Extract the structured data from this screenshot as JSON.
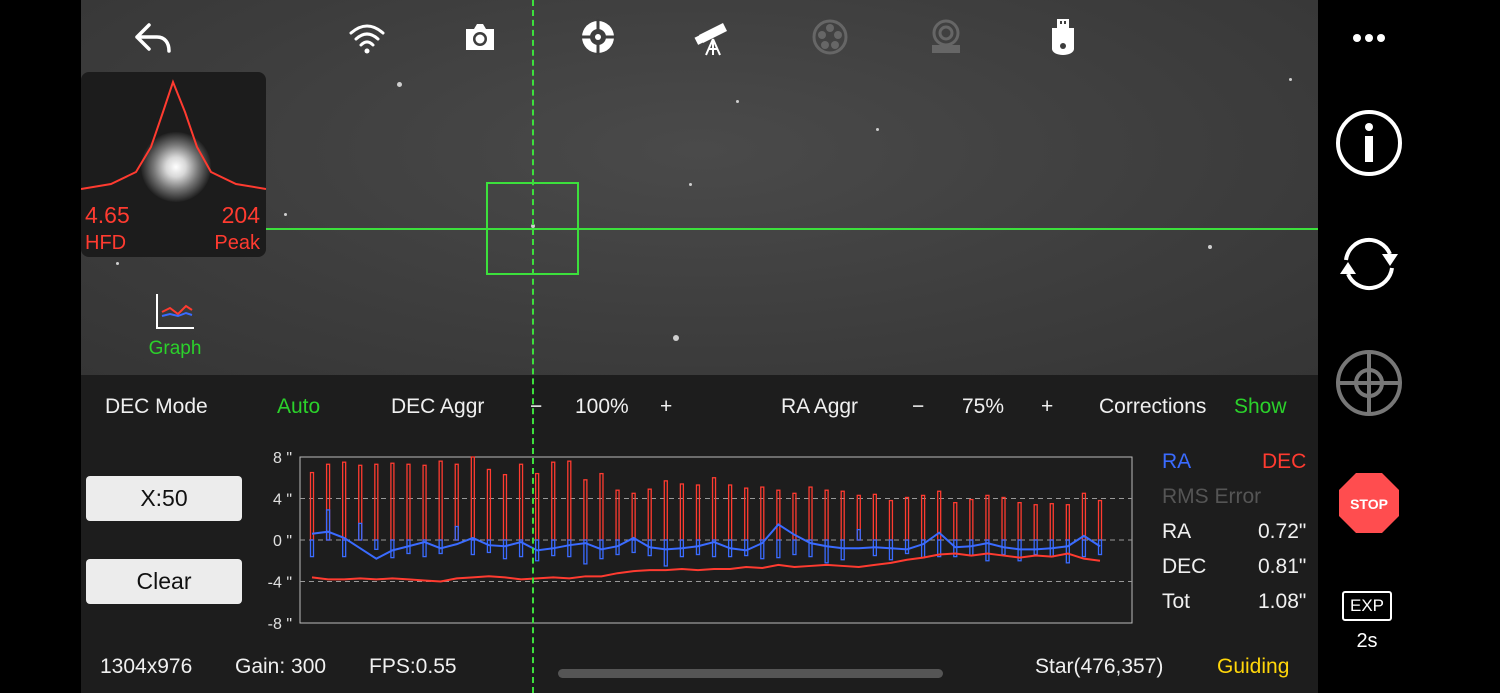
{
  "hfd": {
    "value": "4.65",
    "label": "HFD",
    "peak_value": "204",
    "peak_label": "Peak"
  },
  "graph_label": "Graph",
  "controls": {
    "dec_mode_label": "DEC Mode",
    "dec_mode_value": "Auto",
    "dec_aggr_label": "DEC Aggr",
    "dec_aggr_minus": "−",
    "dec_aggr_value": "100%",
    "dec_aggr_plus": "+",
    "ra_aggr_label": "RA Aggr",
    "ra_aggr_minus": "−",
    "ra_aggr_value": "75%",
    "ra_aggr_plus": "+",
    "corrections_label": "Corrections",
    "corrections_value": "Show"
  },
  "buttons": {
    "x_scale": "X:50",
    "clear": "Clear"
  },
  "legend": {
    "ra": "RA",
    "dec": "DEC"
  },
  "rms": {
    "title": "RMS Error",
    "ra_label": "RA",
    "ra_value": "0.72\"",
    "dec_label": "DEC",
    "dec_value": "0.81\"",
    "tot_label": "Tot",
    "tot_value": "1.08\""
  },
  "status": {
    "resolution": "1304x976",
    "gain": "Gain: 300",
    "fps": "FPS:0.55",
    "star": "Star(476,357)",
    "state": "Guiding"
  },
  "exposure": {
    "label": "EXP",
    "value": "2s"
  },
  "colors": {
    "ra": "#3a6bff",
    "dec": "#ff3b30",
    "accent": "#3ce03c",
    "guiding": "#ffd60a",
    "stop": "#ff4d4f"
  },
  "icons": {
    "top": [
      "back-icon",
      "wifi-icon",
      "camera-icon",
      "guide-target-icon",
      "telescope-icon",
      "filter-wheel-icon",
      "focuser-icon",
      "usb-device-icon"
    ],
    "side": [
      "more-icon",
      "info-icon",
      "refresh-icon",
      "crosshair-icon",
      "stop-icon"
    ]
  },
  "chart_data": {
    "type": "line",
    "y_tick_labels": [
      "8 \"",
      "4 \"",
      "0 \"",
      "-4 \"",
      "-8 \""
    ],
    "ylim": [
      -8,
      8
    ],
    "x_count": 50,
    "grid": "dashed horizontal at 4, 0, -4",
    "series": [
      {
        "name": "RA",
        "values": [
          0.6,
          0.8,
          0.2,
          -0.8,
          -1.8,
          -1.0,
          -0.6,
          -0.2,
          -0.8,
          -0.4,
          0.2,
          -0.5,
          -0.6,
          -0.2,
          -1.0,
          -0.8,
          -0.5,
          -0.3,
          -0.9,
          -0.6,
          0.2,
          -0.7,
          -0.9,
          -0.8,
          -0.6,
          -0.2,
          -0.8,
          -1.0,
          -0.3,
          1.5,
          0.5,
          -0.3,
          -0.6,
          -0.8,
          -0.8,
          -0.7,
          -0.8,
          -0.9,
          -0.4,
          0.7,
          -0.7,
          -0.6,
          -0.3,
          -0.7,
          -0.9,
          -0.9,
          -0.8,
          -0.6,
          0.4,
          -0.6
        ]
      },
      {
        "name": "DEC",
        "values": [
          -3.6,
          -3.8,
          -3.8,
          -3.7,
          -3.8,
          -3.7,
          -3.8,
          -3.9,
          -4.0,
          -3.7,
          -3.6,
          -3.5,
          -3.6,
          -3.8,
          -3.7,
          -3.6,
          -3.7,
          -3.5,
          -3.5,
          -3.2,
          -3.0,
          -2.9,
          -2.9,
          -2.8,
          -2.9,
          -2.8,
          -2.8,
          -2.6,
          -2.7,
          -2.4,
          -2.6,
          -2.5,
          -2.4,
          -2.5,
          -2.6,
          -2.4,
          -2.2,
          -1.9,
          -1.7,
          -1.4,
          -1.3,
          -1.5,
          -1.3,
          -1.5,
          -1.7,
          -1.5,
          -1.6,
          -1.3,
          -1.8,
          -2.0
        ]
      }
    ],
    "corrections": {
      "dec": [
        6.5,
        7.3,
        7.5,
        7.2,
        7.3,
        7.4,
        7.3,
        7.2,
        7.6,
        7.3,
        8.0,
        6.8,
        6.3,
        7.3,
        6.4,
        7.5,
        7.6,
        5.8,
        6.4,
        4.8,
        4.5,
        4.9,
        5.7,
        5.4,
        5.3,
        6.0,
        5.3,
        5.0,
        5.1,
        4.8,
        4.5,
        5.1,
        4.8,
        4.7,
        4.3,
        4.4,
        3.8,
        4.1,
        4.3,
        4.7,
        3.6,
        3.9,
        4.3,
        4.1,
        3.6,
        3.4,
        3.5,
        3.4,
        4.5,
        3.8
      ],
      "ra": [
        -1.6,
        2.9,
        -1.6,
        1.6,
        -0.9,
        -1.7,
        -1.3,
        -1.6,
        -1.3,
        1.3,
        -1.4,
        -1.2,
        -1.8,
        -1.6,
        -2.0,
        -1.5,
        -1.6,
        -2.3,
        -1.8,
        -1.4,
        -1.2,
        -1.5,
        -2.5,
        -1.6,
        -1.4,
        -1.6,
        -1.6,
        -1.5,
        -1.8,
        -1.7,
        -1.4,
        -1.6,
        -2.2,
        -1.9,
        1.0,
        -1.5,
        -1.9,
        -1.3,
        -1.7,
        -1.6,
        -1.6,
        -1.5,
        -2.0,
        -1.4,
        -2.0,
        -1.4,
        -1.6,
        -2.2,
        -1.6,
        -1.4
      ]
    }
  }
}
